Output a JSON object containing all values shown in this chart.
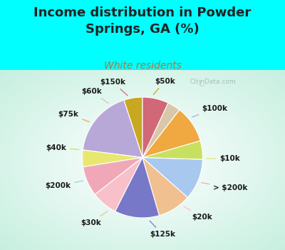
{
  "title": "Income distribution in Powder\nSprings, GA (%)",
  "subtitle": "White residents",
  "bg_cyan": "#00ffff",
  "bg_chart": "#d8f0e8",
  "labels": [
    "$50k",
    "$100k",
    "$10k",
    "> $200k",
    "$20k",
    "$125k",
    "$30k",
    "$200k",
    "$40k",
    "$75k",
    "$60k",
    "$150k"
  ],
  "values": [
    5.0,
    18.0,
    4.5,
    8.0,
    7.0,
    12.0,
    9.0,
    11.0,
    5.0,
    10.0,
    3.5,
    7.0
  ],
  "colors": [
    "#c8a820",
    "#b8a8d8",
    "#e8e870",
    "#f0a8b8",
    "#f8c0c8",
    "#7878c8",
    "#f0c090",
    "#a8c8f0",
    "#c8e060",
    "#f0a840",
    "#d8c8a8",
    "#d06878"
  ],
  "startangle": 90,
  "title_fontsize": 13,
  "subtitle_fontsize": 10,
  "label_fontsize": 7.5,
  "watermark": "City-Data.com"
}
